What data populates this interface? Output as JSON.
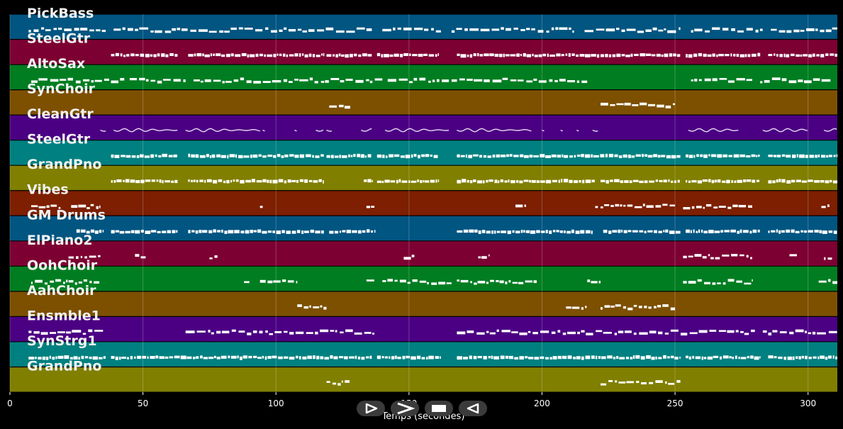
{
  "chart_data": {
    "type": "piano-roll",
    "xlabel": "Temps (secondes)",
    "xlim": [
      0,
      311
    ],
    "xticks": [
      0,
      50,
      100,
      150,
      200,
      250,
      300
    ],
    "tracks": [
      {
        "name": "PickBass",
        "color": "#015581",
        "density": "steady",
        "segments": [
          [
            7,
            36
          ],
          [
            39,
            136
          ],
          [
            140,
            162
          ],
          [
            166,
            212
          ],
          [
            216,
            252
          ],
          [
            256,
            283
          ],
          [
            286,
            311
          ]
        ]
      },
      {
        "name": "SteelGtr",
        "color": "#7d0032",
        "density": "dense",
        "segments": [
          [
            38,
            63
          ],
          [
            67,
            118
          ],
          [
            119,
            136
          ],
          [
            138,
            161
          ],
          [
            168,
            252
          ],
          [
            254,
            282
          ],
          [
            285,
            311
          ]
        ]
      },
      {
        "name": "AltoSax",
        "color": "#007d21",
        "density": "steady",
        "segments": [
          [
            8,
            43
          ],
          [
            45,
            66
          ],
          [
            69,
            140
          ],
          [
            142,
            165
          ],
          [
            166,
            217
          ],
          [
            256,
            279
          ],
          [
            282,
            309
          ]
        ]
      },
      {
        "name": "SynChoir",
        "color": "#7d5000",
        "density": "sparse",
        "segments": [
          [
            120,
            128
          ],
          [
            222,
            250
          ]
        ]
      },
      {
        "name": "CleanGtr",
        "color": "#4b0083",
        "density": "wavy",
        "segments": [
          [
            34,
            36
          ],
          [
            39,
            63
          ],
          [
            66,
            94
          ],
          [
            95,
            96
          ],
          [
            107,
            108
          ],
          [
            115,
            118
          ],
          [
            119,
            121
          ],
          [
            132,
            136
          ],
          [
            141,
            165
          ],
          [
            168,
            196
          ],
          [
            200,
            201
          ],
          [
            207,
            208
          ],
          [
            213,
            214
          ],
          [
            219,
            221
          ],
          [
            255,
            274
          ],
          [
            283,
            300
          ],
          [
            306,
            311
          ]
        ]
      },
      {
        "name": "SteelGtr",
        "color": "#008080",
        "density": "dense",
        "segments": [
          [
            38,
            63
          ],
          [
            67,
            118
          ],
          [
            119,
            136
          ],
          [
            138,
            161
          ],
          [
            168,
            252
          ],
          [
            254,
            282
          ],
          [
            285,
            311
          ]
        ]
      },
      {
        "name": "GrandPno",
        "color": "#807f00",
        "density": "dense",
        "segments": [
          [
            38,
            63
          ],
          [
            67,
            118
          ],
          [
            133,
            136
          ],
          [
            138,
            161
          ],
          [
            168,
            220
          ],
          [
            222,
            252
          ],
          [
            254,
            282
          ],
          [
            285,
            311
          ]
        ]
      },
      {
        "name": "Vibes",
        "color": "#7d1f00",
        "density": "sparse",
        "segments": [
          [
            8,
            19
          ],
          [
            23,
            34
          ],
          [
            94,
            95
          ],
          [
            134,
            137
          ],
          [
            190,
            194
          ],
          [
            220,
            221
          ],
          [
            222,
            250
          ],
          [
            253,
            279
          ],
          [
            305,
            308
          ]
        ]
      },
      {
        "name": "GM Drums",
        "color": "#015581",
        "density": "dense",
        "segments": [
          [
            25,
            35
          ],
          [
            38,
            63
          ],
          [
            67,
            118
          ],
          [
            120,
            137
          ],
          [
            168,
            219
          ],
          [
            223,
            252
          ],
          [
            254,
            282
          ],
          [
            285,
            311
          ]
        ]
      },
      {
        "name": "ElPiano2",
        "color": "#7d0032",
        "density": "sparse",
        "segments": [
          [
            22,
            34
          ],
          [
            47,
            51
          ],
          [
            75,
            78
          ],
          [
            148,
            152
          ],
          [
            176,
            180
          ],
          [
            253,
            279
          ],
          [
            293,
            296
          ],
          [
            306,
            309
          ]
        ]
      },
      {
        "name": "OohChoir",
        "color": "#007d21",
        "density": "sparse",
        "segments": [
          [
            8,
            34
          ],
          [
            88,
            90
          ],
          [
            94,
            108
          ],
          [
            134,
            137
          ],
          [
            140,
            166
          ],
          [
            168,
            198
          ],
          [
            217,
            222
          ],
          [
            253,
            279
          ],
          [
            304,
            311
          ]
        ]
      },
      {
        "name": "AahChoir",
        "color": "#7d5000",
        "density": "sparse",
        "segments": [
          [
            108,
            119
          ],
          [
            209,
            217
          ],
          [
            222,
            250
          ]
        ]
      },
      {
        "name": "Ensmble1",
        "color": "#4b0083",
        "density": "steady",
        "segments": [
          [
            7,
            35
          ],
          [
            66,
            95
          ],
          [
            96,
            123
          ],
          [
            124,
            137
          ],
          [
            168,
            280
          ],
          [
            283,
            311
          ]
        ]
      },
      {
        "name": "SynStrg1",
        "color": "#008080",
        "density": "dense",
        "segments": [
          [
            7,
            36
          ],
          [
            38,
            136
          ],
          [
            138,
            162
          ],
          [
            168,
            252
          ],
          [
            254,
            282
          ],
          [
            285,
            311
          ]
        ]
      },
      {
        "name": "GrandPno",
        "color": "#807f00",
        "density": "sparse",
        "segments": [
          [
            119,
            128
          ],
          [
            222,
            252
          ]
        ]
      }
    ]
  },
  "controls": [
    {
      "name": "play",
      "icon": "play-icon"
    },
    {
      "name": "forward",
      "icon": "forward-icon"
    },
    {
      "name": "stop",
      "icon": "stop-icon"
    },
    {
      "name": "rewind",
      "icon": "rewind-icon"
    }
  ]
}
